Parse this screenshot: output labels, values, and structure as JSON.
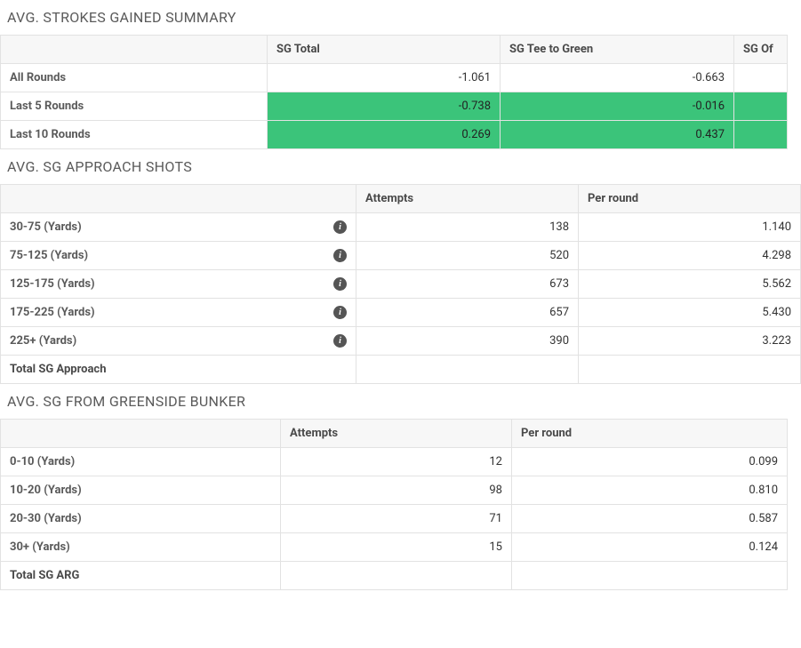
{
  "colors": {
    "highlight": "#3bc47a",
    "border": "#e2e2e2",
    "header_bg": "#f7f7f7",
    "title_color": "#5a5a5a",
    "text_color": "#333333"
  },
  "typography": {
    "title_fontsize": 16,
    "cell_fontsize": 13,
    "font_family": "Segoe UI"
  },
  "section1": {
    "title": "AVG. STROKES GAINED SUMMARY",
    "columns": {
      "c1": "SG Total",
      "c2": "SG Tee to Green",
      "c3": "SG Of"
    },
    "rows": [
      {
        "label": "All Rounds",
        "v1": "-1.061",
        "v2": "-0.663",
        "v3": "",
        "hl": false
      },
      {
        "label": "Last 5 Rounds",
        "v1": "-0.738",
        "v2": "-0.016",
        "v3": "",
        "hl": true
      },
      {
        "label": "Last 10 Rounds",
        "v1": "0.269",
        "v2": "0.437",
        "v3": "",
        "hl": true
      }
    ]
  },
  "section2": {
    "title": "AVG. SG APPROACH SHOTS",
    "columns": {
      "c1": "Attempts",
      "c2": "Per round"
    },
    "rows": [
      {
        "label": "30-75 (Yards)",
        "attempts": "138",
        "per_round": "1.140"
      },
      {
        "label": "75-125 (Yards)",
        "attempts": "520",
        "per_round": "4.298"
      },
      {
        "label": "125-175 (Yards)",
        "attempts": "673",
        "per_round": "5.562"
      },
      {
        "label": "175-225 (Yards)",
        "attempts": "657",
        "per_round": "5.430"
      },
      {
        "label": "225+ (Yards)",
        "attempts": "390",
        "per_round": "3.223"
      }
    ],
    "total_label": "Total SG Approach"
  },
  "section3": {
    "title": "AVG. SG FROM GREENSIDE BUNKER",
    "columns": {
      "c1": "Attempts",
      "c2": "Per round"
    },
    "rows": [
      {
        "label": "0-10 (Yards)",
        "attempts": "12",
        "per_round": "0.099"
      },
      {
        "label": "10-20 (Yards)",
        "attempts": "98",
        "per_round": "0.810"
      },
      {
        "label": "20-30 (Yards)",
        "attempts": "71",
        "per_round": "0.587"
      },
      {
        "label": "30+ (Yards)",
        "attempts": "15",
        "per_round": "0.124"
      }
    ],
    "total_label": "Total SG ARG"
  }
}
